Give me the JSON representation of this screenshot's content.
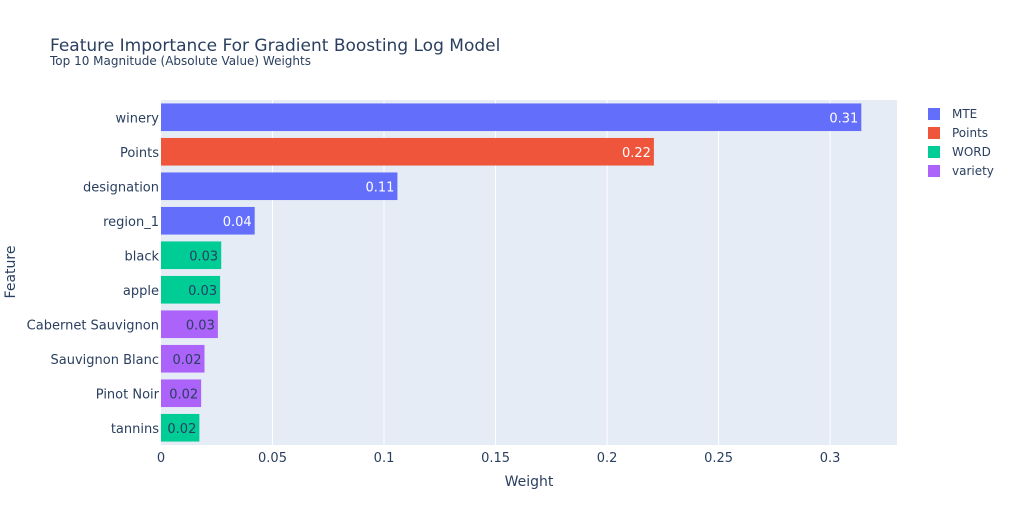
{
  "chart_data": {
    "type": "bar",
    "orientation": "horizontal",
    "title": "Feature Importance For Gradient Boosting Log Model",
    "subtitle": "Top 10 Magnitude (Absolute Value) Weights",
    "xlabel": "Weight",
    "ylabel": "Feature",
    "xlim": [
      0,
      0.33
    ],
    "xticks": [
      0,
      0.05,
      0.1,
      0.15,
      0.2,
      0.25,
      0.3
    ],
    "xtick_labels": [
      "0",
      "0.05",
      "0.1",
      "0.15",
      "0.2",
      "0.25",
      "0.3"
    ],
    "grid": true,
    "legend_position": "top-right",
    "series": [
      {
        "name": "MTE",
        "color": "#636efa"
      },
      {
        "name": "Points",
        "color": "#ef553b"
      },
      {
        "name": "WORD",
        "color": "#00cc96"
      },
      {
        "name": "variety",
        "color": "#ab63fa"
      }
    ],
    "bars": [
      {
        "feature": "winery",
        "value": 0.314,
        "label": "0.31",
        "series": "MTE"
      },
      {
        "feature": "Points",
        "value": 0.221,
        "label": "0.22",
        "series": "Points"
      },
      {
        "feature": "designation",
        "value": 0.106,
        "label": "0.11",
        "series": "MTE"
      },
      {
        "feature": "region_1",
        "value": 0.042,
        "label": "0.04",
        "series": "MTE"
      },
      {
        "feature": "black",
        "value": 0.027,
        "label": "0.03",
        "series": "WORD"
      },
      {
        "feature": "apple",
        "value": 0.0265,
        "label": "0.03",
        "series": "WORD"
      },
      {
        "feature": "Cabernet Sauvignon",
        "value": 0.0255,
        "label": "0.03",
        "series": "variety"
      },
      {
        "feature": "Sauvignon Blanc",
        "value": 0.0195,
        "label": "0.02",
        "series": "variety"
      },
      {
        "feature": "Pinot Noir",
        "value": 0.018,
        "label": "0.02",
        "series": "variety"
      },
      {
        "feature": "tannins",
        "value": 0.0172,
        "label": "0.02",
        "series": "WORD"
      }
    ]
  }
}
